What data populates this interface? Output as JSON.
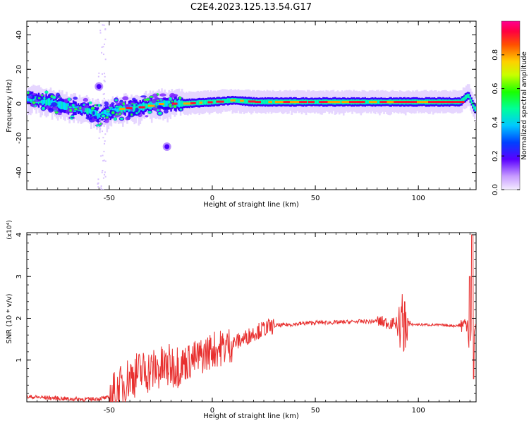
{
  "title": "C2E4.2023.125.13.54.G17",
  "chart_data": [
    {
      "type": "heatmap",
      "xlabel": "Height of straight line (km)",
      "ylabel": "Frequency (Hz)",
      "xlim": [
        -90,
        128
      ],
      "ylim": [
        -50,
        48
      ],
      "xticks": [
        -50,
        0,
        50,
        100
      ],
      "yticks": [
        -40,
        -20,
        0,
        20,
        40
      ],
      "colorbar": {
        "label": "Normalized spectral amplitude",
        "range": [
          0,
          1
        ],
        "ticks": [
          "0.0",
          "0.2",
          "0.4",
          "0.6",
          "0.8"
        ]
      },
      "ridge": [
        {
          "x": -89,
          "y": 3
        },
        {
          "x": -80,
          "y": 1
        },
        {
          "x": -70,
          "y": -2
        },
        {
          "x": -60,
          "y": -4
        },
        {
          "x": -55,
          "y": -7
        },
        {
          "x": -45,
          "y": -3
        },
        {
          "x": -35,
          "y": -2
        },
        {
          "x": -25,
          "y": 0
        },
        {
          "x": -15,
          "y": 0
        },
        {
          "x": 0,
          "y": 1
        },
        {
          "x": 10,
          "y": 2
        },
        {
          "x": 20,
          "y": 1
        },
        {
          "x": 40,
          "y": 1
        },
        {
          "x": 60,
          "y": 1
        },
        {
          "x": 80,
          "y": 1
        },
        {
          "x": 90,
          "y": 1
        },
        {
          "x": 100,
          "y": 1
        },
        {
          "x": 115,
          "y": 1
        },
        {
          "x": 120,
          "y": 1
        },
        {
          "x": 124,
          "y": 5
        },
        {
          "x": 127,
          "y": -3
        }
      ],
      "features": [
        {
          "x": -55,
          "y": 10,
          "note": "spot"
        },
        {
          "x": -22,
          "y": -25,
          "note": "spot"
        }
      ]
    },
    {
      "type": "line",
      "xlabel": "Height of straight line (km)",
      "ylabel": "SNR (10 * v/v)",
      "y_multiplier": "(x10⁴)",
      "xlim": [
        -90,
        128
      ],
      "ylim": [
        0,
        4.05
      ],
      "xticks": [
        -50,
        0,
        50,
        100
      ],
      "yticks": [
        1,
        2,
        3,
        4
      ],
      "color": "#e8302f",
      "envelope": [
        {
          "x": -90,
          "y": 0.12
        },
        {
          "x": -80,
          "y": 0.1
        },
        {
          "x": -70,
          "y": 0.07
        },
        {
          "x": -60,
          "y": 0.06
        },
        {
          "x": -50,
          "y": 0.1
        },
        {
          "x": -45,
          "y": 0.3
        },
        {
          "x": -40,
          "y": 0.6
        },
        {
          "x": -35,
          "y": 0.7
        },
        {
          "x": -30,
          "y": 0.75
        },
        {
          "x": -25,
          "y": 0.8
        },
        {
          "x": -20,
          "y": 0.85
        },
        {
          "x": -15,
          "y": 0.9
        },
        {
          "x": -10,
          "y": 1.0
        },
        {
          "x": -5,
          "y": 1.1
        },
        {
          "x": 0,
          "y": 1.25
        },
        {
          "x": 5,
          "y": 1.3
        },
        {
          "x": 10,
          "y": 1.4
        },
        {
          "x": 15,
          "y": 1.5
        },
        {
          "x": 20,
          "y": 1.65
        },
        {
          "x": 25,
          "y": 1.75
        },
        {
          "x": 30,
          "y": 1.82
        },
        {
          "x": 40,
          "y": 1.86
        },
        {
          "x": 50,
          "y": 1.9
        },
        {
          "x": 60,
          "y": 1.9
        },
        {
          "x": 70,
          "y": 1.92
        },
        {
          "x": 80,
          "y": 1.93
        },
        {
          "x": 90,
          "y": 1.85
        },
        {
          "x": 95,
          "y": 1.85
        },
        {
          "x": 100,
          "y": 1.85
        },
        {
          "x": 110,
          "y": 1.84
        },
        {
          "x": 118,
          "y": 1.82
        },
        {
          "x": 122,
          "y": 1.85
        },
        {
          "x": 124,
          "y": 1.9
        },
        {
          "x": 125,
          "y": 0.9
        },
        {
          "x": 126,
          "y": 2.2
        },
        {
          "x": 127,
          "y": 1.8
        },
        {
          "x": 128,
          "y": 1.85
        }
      ],
      "spikes": [
        {
          "x": 93,
          "y": 2.65
        },
        {
          "x": 125,
          "y": 3.0
        },
        {
          "x": 126.3,
          "y": 4.0
        }
      ]
    }
  ]
}
